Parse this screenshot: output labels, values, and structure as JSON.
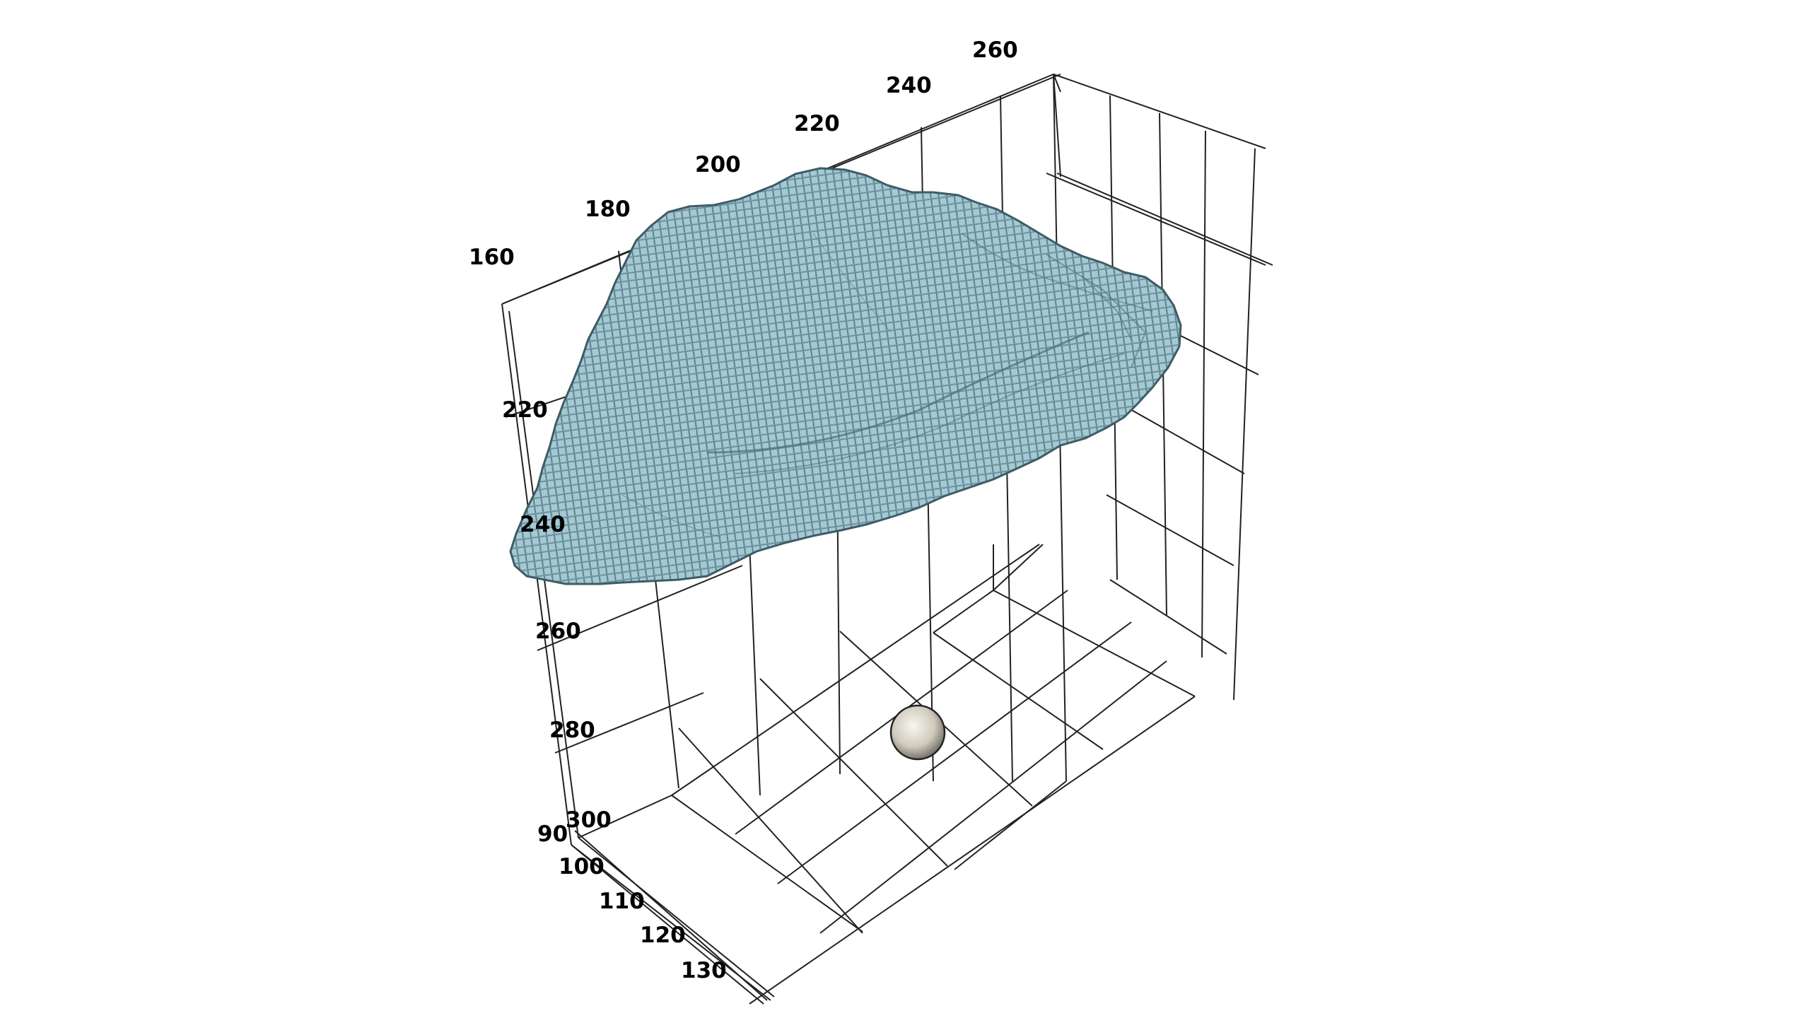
{
  "scene": {
    "type": "3d-voxel-plot",
    "colors": {
      "voxel_fill": "#a5c9d3",
      "voxel_edge": "#5a7f8a",
      "grid_line": "#222222",
      "marker_sphere": "#dcd8cc",
      "background": "#ffffff"
    },
    "marker": {
      "shape": "sphere"
    }
  },
  "axes": {
    "top_axis": {
      "ticks": [
        "160",
        "180",
        "200",
        "220",
        "240",
        "260"
      ]
    },
    "vertical_axis": {
      "ticks": [
        "220",
        "240",
        "260",
        "280",
        "300"
      ]
    },
    "depth_axis": {
      "ticks": [
        "90",
        "100",
        "110",
        "120",
        "130"
      ]
    }
  }
}
